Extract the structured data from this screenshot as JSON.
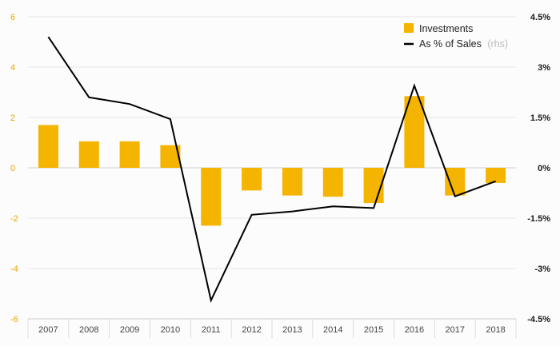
{
  "chart_data": {
    "type": "bar",
    "categories": [
      "2007",
      "2008",
      "2009",
      "2010",
      "2011",
      "2012",
      "2013",
      "2014",
      "2015",
      "2016",
      "2017",
      "2018"
    ],
    "series": [
      {
        "name": "Investments",
        "type": "bar",
        "axis": "left",
        "color": "#f5b400",
        "values": [
          1.7,
          1.05,
          1.05,
          0.9,
          -2.3,
          -0.9,
          -1.1,
          -1.15,
          -1.4,
          2.85,
          -1.1,
          -0.6
        ]
      },
      {
        "name": "As % of Sales",
        "type": "line",
        "axis": "right",
        "color": "#000000",
        "values": [
          3.9,
          2.1,
          1.9,
          1.45,
          -3.95,
          -1.4,
          -1.3,
          -1.15,
          -1.2,
          2.45,
          -0.85,
          -0.4
        ]
      }
    ],
    "legend_note": "(rhs)",
    "y_left": {
      "ylim": [
        -6,
        6
      ],
      "ticks": [
        -6,
        -4,
        -2,
        0,
        2,
        4,
        6
      ],
      "tick_labels": [
        "-6",
        "-4",
        "-2",
        "0",
        "2",
        "4",
        "6"
      ]
    },
    "y_right": {
      "ylim": [
        -4.5,
        4.5
      ],
      "ticks": [
        -4.5,
        -3,
        -1.5,
        0,
        1.5,
        3,
        4.5
      ],
      "tick_labels": [
        "-4.5%",
        "-3%",
        "-1.5%",
        "0%",
        "1.5%",
        "3%",
        "4.5%"
      ]
    },
    "grid": true,
    "legend_position": "top-right",
    "title": "",
    "xlabel": "",
    "ylabel": ""
  }
}
